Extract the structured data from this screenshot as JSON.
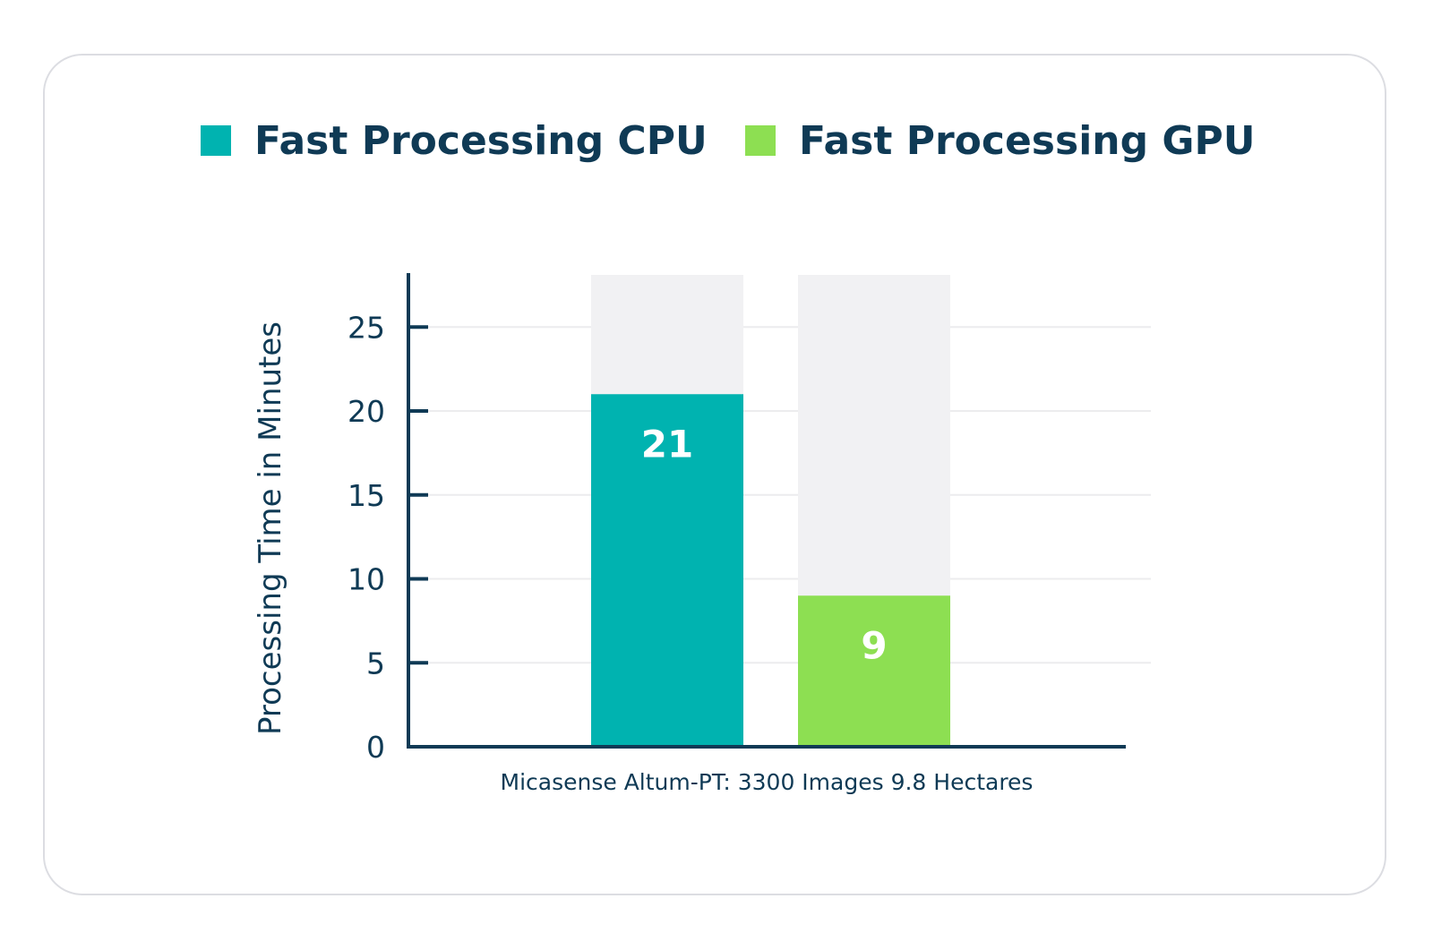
{
  "colors": {
    "cpu": "#00b3b0",
    "gpu": "#8ddf52",
    "background_bar": "#f1f1f3",
    "axis": "#0f3a55",
    "grid": "#ececee"
  },
  "legend": {
    "cpu_label": "Fast Processing CPU",
    "gpu_label": "Fast Processing GPU"
  },
  "chart_data": {
    "type": "bar",
    "title": "",
    "categories": [
      "Micasense Altum-PT: 3300 Images 9.8 Hectares"
    ],
    "series": [
      {
        "name": "Fast Processing CPU",
        "values": [
          21
        ],
        "data_label": "21"
      },
      {
        "name": "Fast Processing GPU",
        "values": [
          9
        ],
        "data_label": "9"
      }
    ],
    "xlabel": "Micasense Altum-PT: 3300 Images 9.8 Hectares",
    "ylabel": "Processing Time in Minutes",
    "ylim": [
      0,
      28
    ],
    "yticks": [
      0,
      5,
      10,
      15,
      20,
      25
    ],
    "ytick_labels": [
      "0",
      "5",
      "10",
      "15",
      "20",
      "25"
    ],
    "grid": true,
    "legend_position": "top"
  }
}
